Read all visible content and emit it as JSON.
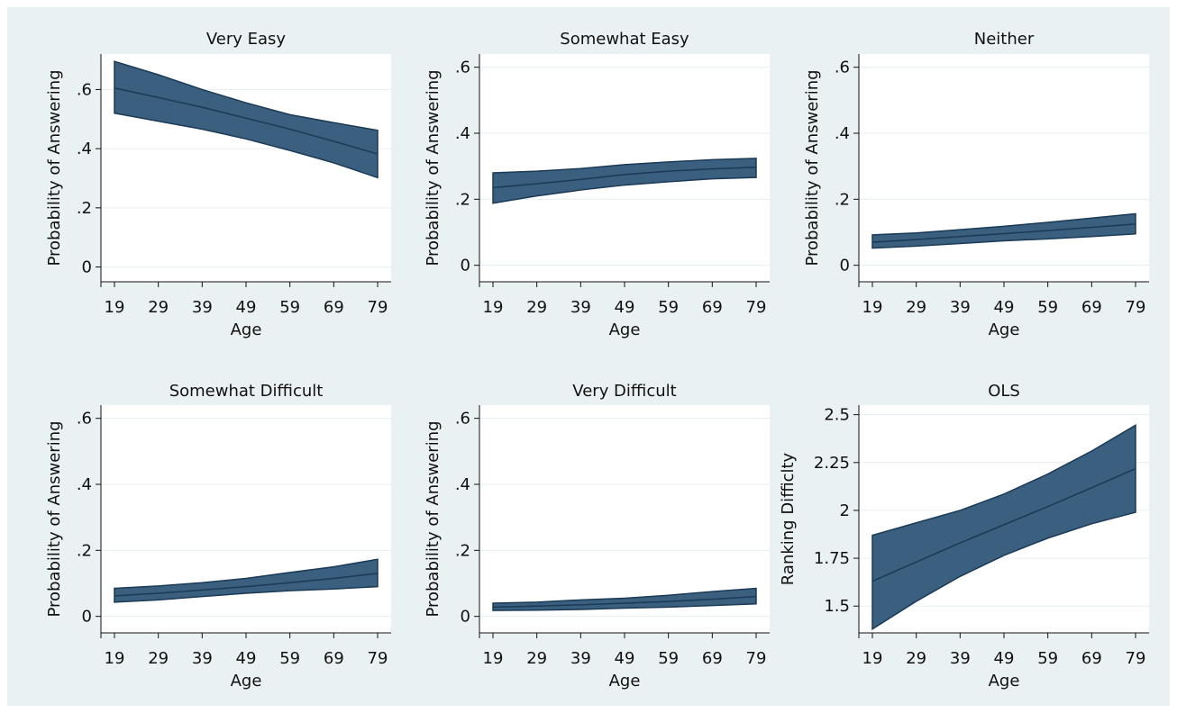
{
  "colors": {
    "background": "#eaf1f3",
    "plot_area": "#ffffff",
    "band_fill": "#3a5f7f",
    "band_edge": "#1b3a56",
    "grid": "#e6eef1",
    "text": "#111111"
  },
  "chart_data": [
    {
      "type": "area",
      "title": "Very Easy",
      "xlabel": "Age",
      "ylabel": "Probability of Answering",
      "x": [
        19,
        29,
        39,
        49,
        59,
        69,
        79
      ],
      "xticks": [
        "19",
        "29",
        "39",
        "49",
        "59",
        "69",
        "79"
      ],
      "yticks": [
        0,
        0.2,
        0.4,
        0.6
      ],
      "ytick_labels": [
        "0",
        ".2",
        ".4",
        ".6"
      ],
      "ylim": [
        -0.05,
        0.72
      ],
      "series": [
        {
          "estimate": [
            0.605,
            0.573,
            0.54,
            0.503,
            0.466,
            0.425,
            0.382
          ],
          "lower": [
            0.52,
            0.493,
            0.466,
            0.433,
            0.394,
            0.352,
            0.302
          ],
          "upper": [
            0.695,
            0.65,
            0.6,
            0.555,
            0.515,
            0.488,
            0.462
          ]
        }
      ]
    },
    {
      "type": "area",
      "title": "Somewhat Easy",
      "xlabel": "Age",
      "ylabel": "Probability of Answering",
      "x": [
        19,
        29,
        39,
        49,
        59,
        69,
        79
      ],
      "xticks": [
        "19",
        "29",
        "39",
        "49",
        "59",
        "69",
        "79"
      ],
      "yticks": [
        0,
        0.2,
        0.4,
        0.6
      ],
      "ytick_labels": [
        "0",
        ".2",
        ".4",
        ".6"
      ],
      "ylim": [
        -0.05,
        0.64
      ],
      "series": [
        {
          "estimate": [
            0.235,
            0.247,
            0.26,
            0.275,
            0.285,
            0.292,
            0.297
          ],
          "lower": [
            0.188,
            0.21,
            0.228,
            0.243,
            0.253,
            0.262,
            0.266
          ],
          "upper": [
            0.28,
            0.285,
            0.293,
            0.305,
            0.313,
            0.32,
            0.324
          ]
        }
      ]
    },
    {
      "type": "area",
      "title": "Neither",
      "xlabel": "Age",
      "ylabel": "Probability of Answering",
      "x": [
        19,
        29,
        39,
        49,
        59,
        69,
        79
      ],
      "xticks": [
        "19",
        "29",
        "39",
        "49",
        "59",
        "69",
        "79"
      ],
      "yticks": [
        0,
        0.2,
        0.4,
        0.6
      ],
      "ytick_labels": [
        "0",
        ".2",
        ".4",
        ".6"
      ],
      "ylim": [
        -0.05,
        0.64
      ],
      "series": [
        {
          "estimate": [
            0.07,
            0.078,
            0.087,
            0.096,
            0.105,
            0.115,
            0.125
          ],
          "lower": [
            0.052,
            0.058,
            0.066,
            0.074,
            0.08,
            0.087,
            0.095
          ],
          "upper": [
            0.092,
            0.098,
            0.108,
            0.118,
            0.13,
            0.143,
            0.156
          ]
        }
      ]
    },
    {
      "type": "area",
      "title": "Somewhat Difficult",
      "xlabel": "Age",
      "ylabel": "Probability of Answering",
      "x": [
        19,
        29,
        39,
        49,
        59,
        69,
        79
      ],
      "xticks": [
        "19",
        "29",
        "39",
        "49",
        "59",
        "69",
        "79"
      ],
      "yticks": [
        0,
        0.2,
        0.4,
        0.6
      ],
      "ytick_labels": [
        "0",
        ".2",
        ".4",
        ".6"
      ],
      "ylim": [
        -0.05,
        0.64
      ],
      "series": [
        {
          "estimate": [
            0.062,
            0.07,
            0.08,
            0.09,
            0.102,
            0.115,
            0.13
          ],
          "lower": [
            0.043,
            0.05,
            0.06,
            0.07,
            0.078,
            0.083,
            0.09
          ],
          "upper": [
            0.085,
            0.092,
            0.102,
            0.115,
            0.133,
            0.15,
            0.173
          ]
        }
      ]
    },
    {
      "type": "area",
      "title": "Very Difficult",
      "xlabel": "Age",
      "ylabel": "Probability of Answering",
      "x": [
        19,
        29,
        39,
        49,
        59,
        69,
        79
      ],
      "xticks": [
        "19",
        "29",
        "39",
        "49",
        "59",
        "69",
        "79"
      ],
      "yticks": [
        0,
        0.2,
        0.4,
        0.6
      ],
      "ytick_labels": [
        "0",
        ".2",
        ".4",
        ".6"
      ],
      "ylim": [
        -0.05,
        0.64
      ],
      "series": [
        {
          "estimate": [
            0.028,
            0.031,
            0.035,
            0.04,
            0.045,
            0.052,
            0.06
          ],
          "lower": [
            0.018,
            0.019,
            0.021,
            0.025,
            0.028,
            0.033,
            0.038
          ],
          "upper": [
            0.04,
            0.043,
            0.05,
            0.055,
            0.064,
            0.075,
            0.085
          ]
        }
      ]
    },
    {
      "type": "area",
      "title": "OLS",
      "xlabel": "Age",
      "ylabel": "Ranking Difficlty",
      "x": [
        19,
        29,
        39,
        49,
        59,
        69,
        79
      ],
      "xticks": [
        "19",
        "29",
        "39",
        "49",
        "59",
        "69",
        "79"
      ],
      "yticks": [
        1.5,
        1.75,
        2,
        2.25,
        2.5
      ],
      "ytick_labels": [
        "1.5",
        "1.75",
        "2",
        "2.25",
        "2.5"
      ],
      "ylim": [
        1.36,
        2.55
      ],
      "series": [
        {
          "estimate": [
            1.63,
            1.73,
            1.83,
            1.925,
            2.02,
            2.118,
            2.218
          ],
          "lower": [
            1.38,
            1.525,
            1.655,
            1.765,
            1.855,
            1.93,
            1.99
          ],
          "upper": [
            1.87,
            1.935,
            2.0,
            2.085,
            2.19,
            2.31,
            2.445
          ]
        }
      ]
    }
  ]
}
